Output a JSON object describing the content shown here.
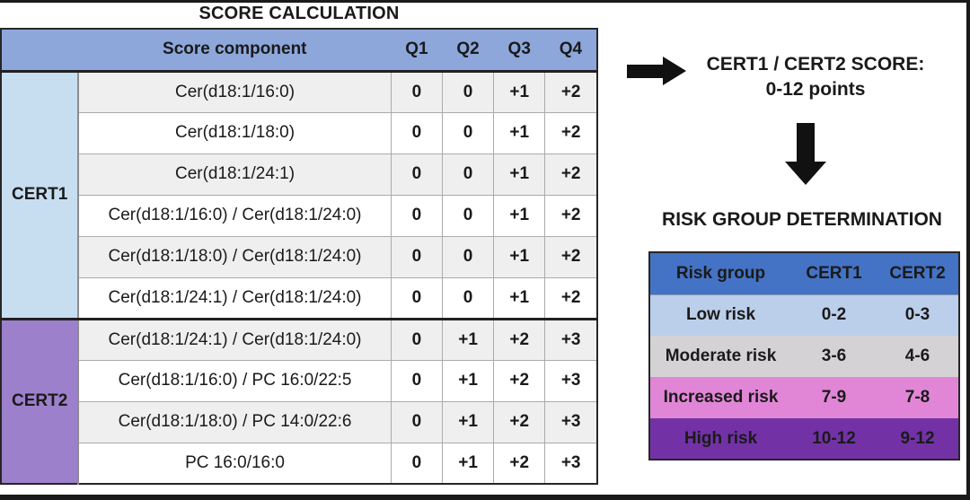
{
  "figure": {
    "frame_color": "#1a1a1a",
    "background": "#ffffff"
  },
  "score_calculation": {
    "title": "SCORE CALCULATION",
    "table": {
      "header": {
        "component_label": "Score component",
        "quartiles": [
          "Q1",
          "Q2",
          "Q3",
          "Q4"
        ],
        "bg": "#8DA7DB"
      },
      "groups": [
        {
          "label": "CERT1",
          "color": "#C7DEF1",
          "rows": [
            {
              "component": "Cer(d18:1/16:0)",
              "scores": [
                "0",
                "0",
                "+1",
                "+2"
              ]
            },
            {
              "component": "Cer(d18:1/18:0)",
              "scores": [
                "0",
                "0",
                "+1",
                "+2"
              ]
            },
            {
              "component": "Cer(d18:1/24:1)",
              "scores": [
                "0",
                "0",
                "+1",
                "+2"
              ]
            },
            {
              "component": "Cer(d18:1/16:0) / Cer(d18:1/24:0)",
              "scores": [
                "0",
                "0",
                "+1",
                "+2"
              ]
            },
            {
              "component": "Cer(d18:1/18:0) / Cer(d18:1/24:0)",
              "scores": [
                "0",
                "0",
                "+1",
                "+2"
              ]
            },
            {
              "component": "Cer(d18:1/24:1) / Cer(d18:1/24:0)",
              "scores": [
                "0",
                "0",
                "+1",
                "+2"
              ]
            }
          ]
        },
        {
          "label": "CERT2",
          "color": "#9D80CB",
          "rows": [
            {
              "component": "Cer(d18:1/24:1) / Cer(d18:1/24:0)",
              "scores": [
                "0",
                "+1",
                "+2",
                "+3"
              ]
            },
            {
              "component": "Cer(d18:1/16:0) / PC 16:0/22:5",
              "scores": [
                "0",
                "+1",
                "+2",
                "+3"
              ]
            },
            {
              "component": "Cer(d18:1/18:0) / PC 14:0/22:6",
              "scores": [
                "0",
                "+1",
                "+2",
                "+3"
              ]
            },
            {
              "component": "PC 16:0/16:0",
              "scores": [
                "0",
                "+1",
                "+2",
                "+3"
              ]
            }
          ]
        }
      ],
      "stripe_color": "#EFEFEF",
      "border_color": "#262626",
      "grid_color": "#ABABAB"
    }
  },
  "flow": {
    "right_arrow_icon": "right-arrow",
    "down_arrow_icon": "down-arrow",
    "arrow_color": "#111111",
    "score_heading_line1": "CERT1 / CERT2 SCORE:",
    "score_heading_line2": "0-12 points"
  },
  "risk_determination": {
    "title": "RISK GROUP DETERMINATION",
    "table": {
      "header": {
        "labels": [
          "Risk group",
          "CERT1",
          "CERT2"
        ],
        "bg": "#4472C4"
      },
      "rows": [
        {
          "label": "Low risk",
          "cert1": "0-2",
          "cert2": "0-3",
          "bg": "#BCCFEA",
          "text": "#1a1a1a"
        },
        {
          "label": "Moderate risk",
          "cert1": "3-6",
          "cert2": "4-6",
          "bg": "#D5D2D5",
          "text": "#1a1a1a"
        },
        {
          "label": "Increased risk",
          "cert1": "7-9",
          "cert2": "7-8",
          "bg": "#E186D6",
          "text": "#1a1a1a"
        },
        {
          "label": "High risk",
          "cert1": "10-12",
          "cert2": "9-12",
          "bg": "#7232A6",
          "text": "#1a1a1a"
        }
      ]
    }
  }
}
